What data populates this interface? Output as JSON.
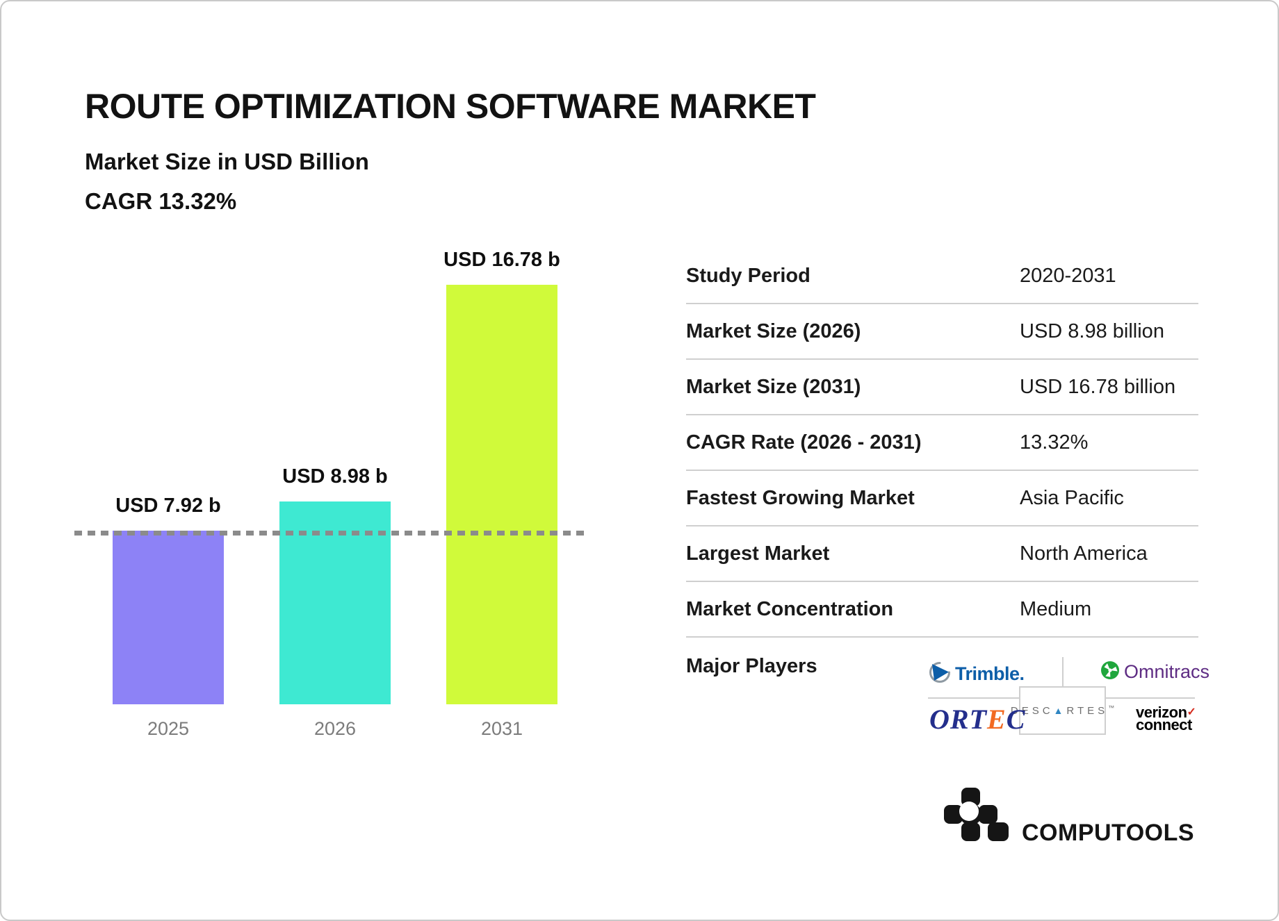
{
  "card": {
    "border_color": "#c9c9c9",
    "background": "#ffffff"
  },
  "header": {
    "title": "ROUTE OPTIMIZATION SOFTWARE MARKET",
    "subtitle": "Market Size in USD Billion",
    "cagr_line": "CAGR 13.32%"
  },
  "chart_data": {
    "type": "bar",
    "title": "Market Size in USD Billion",
    "categories": [
      "2025",
      "2026",
      "2031"
    ],
    "values": [
      7.92,
      8.98,
      16.78
    ],
    "bar_labels": [
      "USD 7.92 b",
      "USD 8.98 b",
      "USD 16.78 b"
    ],
    "bar_colors": [
      "#8D82F6",
      "#3EE9D2",
      "#D0FA3A"
    ],
    "reference_line": {
      "value": 7.92,
      "style": "dashed",
      "color": "#8B8B8B"
    },
    "xlabel": "",
    "ylabel": "USD Billion",
    "ylim_note": "bars truncated, non-zero baseline",
    "grid": "off",
    "tick_label_color": "#7B7B7B"
  },
  "table": {
    "divider_color": "#CFCFCF",
    "rows": [
      {
        "label": "Study Period",
        "value": "2020-2031"
      },
      {
        "label": "Market Size (2026)",
        "value": "USD 8.98 billion"
      },
      {
        "label": "Market Size (2031)",
        "value": "USD 16.78 billion"
      },
      {
        "label": "CAGR Rate (2026 - 2031)",
        "value": "13.32%"
      },
      {
        "label": "Fastest Growing Market",
        "value": "Asia Pacific"
      },
      {
        "label": "Largest Market",
        "value": "North America"
      },
      {
        "label": "Market Concentration",
        "value": "Medium"
      }
    ],
    "major_players": {
      "label": "Major Players",
      "players": [
        {
          "name": "Trimble",
          "wordmark": "Trimble.",
          "color": "#0D5EA8"
        },
        {
          "name": "Omnitracs",
          "wordmark": "Omnitracs",
          "text_color": "#5E2C83",
          "icon_color": "#1FA63C"
        },
        {
          "name": "ORTEC",
          "wordmark_parts": {
            "prefix": "ORT",
            "accent": "E",
            "suffix": "C"
          },
          "text_color": "#232E8C",
          "accent_color": "#F26A22"
        },
        {
          "name": "Descartes",
          "wordmark_prefix": "DESC",
          "triangle": "▲",
          "wordmark_suffix": "RTES",
          "tm": "™",
          "text_color": "#6E6E6E",
          "triangle_color": "#2F86C2"
        },
        {
          "name": "Verizon Connect",
          "line1": "verizon",
          "check": "✓",
          "line2": "connect",
          "text_color": "#000000",
          "check_color": "#D52B1E"
        }
      ]
    }
  },
  "footer": {
    "brand": "COMPUTOOLS"
  }
}
